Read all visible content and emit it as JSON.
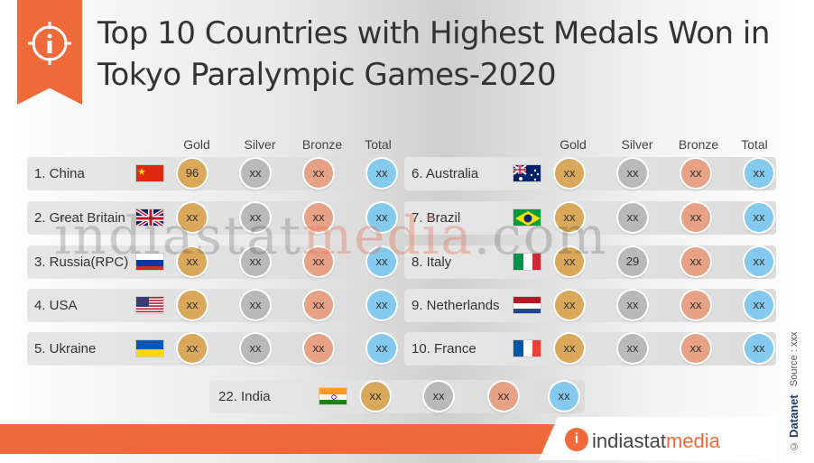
{
  "title": "Top 10 Countries with Highest Medals Won in Tokyo Paralympic Games-2020",
  "title_line1": "Top 10 Countries with Highest Medals Won in",
  "title_line2": "Tokyo Paralympic Games-2020",
  "columns": [
    "Gold",
    "Silver",
    "Bronze",
    "Total"
  ],
  "left_rows": [
    {
      "label": "1. China",
      "flag": "china-flag",
      "gold": "96",
      "silver": "xx",
      "bronze": "xx",
      "total": "xx"
    },
    {
      "label": "2. Great Britain",
      "flag": "uk-flag",
      "gold": "xx",
      "silver": "xx",
      "bronze": "xx",
      "total": "xx"
    },
    {
      "label": "3. Russia(RPC)",
      "flag": "russia-flag",
      "gold": "xx",
      "silver": "xx",
      "bronze": "xx",
      "total": "xx"
    },
    {
      "label": "4. USA",
      "flag": "usa-flag",
      "gold": "xx",
      "silver": "xx",
      "bronze": "xx",
      "total": "xx"
    },
    {
      "label": "5. Ukraine",
      "flag": "ukraine-flag",
      "gold": "xx",
      "silver": "xx",
      "bronze": "xx",
      "total": "xx"
    }
  ],
  "right_rows": [
    {
      "label": "6. Australia",
      "flag": "australia-flag",
      "gold": "xx",
      "silver": "xx",
      "bronze": "xx",
      "total": "xx"
    },
    {
      "label": "7. Brazil",
      "flag": "brazil-flag",
      "gold": "xx",
      "silver": "xx",
      "bronze": "xx",
      "total": "xx"
    },
    {
      "label": "8. Italy",
      "flag": "italy-flag",
      "gold": "xx",
      "silver": "29",
      "bronze": "xx",
      "total": "xx"
    },
    {
      "label": "9. Netherlands",
      "flag": "netherlands-flag",
      "gold": "xx",
      "silver": "xx",
      "bronze": "xx",
      "total": "xx"
    },
    {
      "label": "10. France",
      "flag": "france-flag",
      "gold": "xx",
      "silver": "xx",
      "bronze": "xx",
      "total": "xx"
    }
  ],
  "india_row": {
    "label": "22. India",
    "flag": "india-flag",
    "gold": "xx",
    "silver": "xx",
    "bronze": "xx",
    "total": "xx"
  },
  "watermark": {
    "part1": "indiastat",
    "part2": "media",
    "part3": ".com"
  },
  "logo": {
    "part1": "indiastat",
    "part2": "media"
  },
  "side": {
    "source": "Source : xxx",
    "brand": "Datanet",
    "copyright": "©"
  },
  "colors": {
    "accent": "#ef6a3b",
    "gold": "#d9a85a",
    "silver": "#b9b9b9",
    "bronze": "#e7a184",
    "total": "#84c9ee"
  }
}
